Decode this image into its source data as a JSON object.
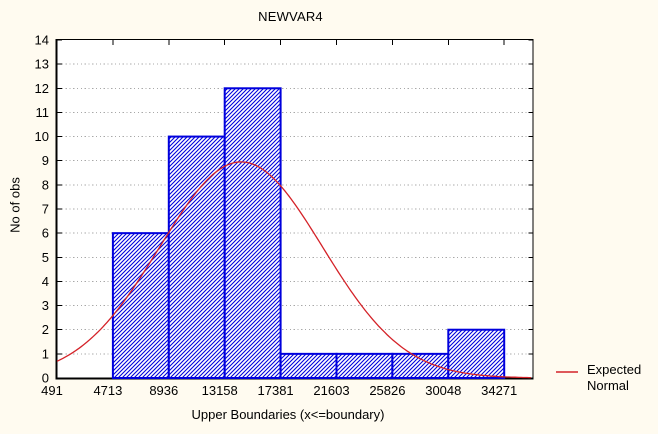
{
  "window": {
    "background_color": "#fffbf0"
  },
  "chart_data": {
    "type": "bar",
    "subtype": "histogram-with-expected-normal",
    "title": "NEWVAR4",
    "xlabel": "Upper Boundaries (x<=boundary)",
    "ylabel": "No of obs",
    "bin_boundaries": [
      491,
      4713,
      8936,
      13158,
      17381,
      21603,
      25826,
      30048,
      34271
    ],
    "x_tick_labels": [
      "491",
      "4713",
      "8936",
      "13158",
      "17381",
      "21603",
      "25826",
      "30048",
      "34271"
    ],
    "counts": [
      0,
      6,
      10,
      12,
      1,
      1,
      1,
      2
    ],
    "ylim": [
      0,
      14
    ],
    "y_tick_step": 1,
    "y_tick_labels": [
      "0",
      "1",
      "2",
      "3",
      "4",
      "5",
      "6",
      "7",
      "8",
      "9",
      "10",
      "11",
      "12",
      "13",
      "14"
    ],
    "x_axis_right_padding_data_units": 2100,
    "grid": "horizontal-dotted",
    "legend_position": "bottom-right-outside",
    "series": [
      {
        "name": "No of obs",
        "kind": "bars",
        "values": [
          0,
          6,
          10,
          12,
          1,
          1,
          1,
          2
        ]
      },
      {
        "name": "Expected Normal",
        "kind": "line",
        "curve": {
          "mean": 14400,
          "sigma": 6150,
          "peak": 8.95
        }
      }
    ],
    "legend": {
      "label_line1": "Expected",
      "label_line2": "Normal"
    },
    "colors": {
      "page_bg": "#fffbf0",
      "plot_bg": "#ffffff",
      "frame": "#000000",
      "grid": "#a8a8a8",
      "bar_edge": "#0000dd",
      "bar_hatch": "#0000dd",
      "bar_fill": "#ffffff",
      "curve": "#d42228",
      "text": "#000000"
    }
  }
}
